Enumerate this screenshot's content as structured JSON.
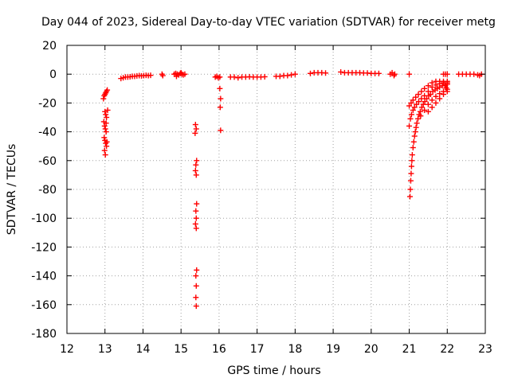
{
  "chart_data": {
    "type": "scatter",
    "title": "Day 044 of 2023, Sidereal Day-to-day VTEC variation (SDTVAR) for receiver metg",
    "xlabel": "GPS time / hours",
    "ylabel": "SDTVAR / TECUs",
    "xlim": [
      12,
      23
    ],
    "ylim": [
      -180,
      20
    ],
    "xticks": [
      12,
      13,
      14,
      15,
      16,
      17,
      18,
      19,
      20,
      21,
      22,
      23
    ],
    "yticks": [
      20,
      0,
      -20,
      -40,
      -60,
      -80,
      -100,
      -120,
      -140,
      -160,
      -180
    ],
    "grid": true,
    "marker": "+",
    "color": "#ff0000",
    "series": [
      {
        "name": "SDTVAR",
        "points": [
          [
            12.96,
            -17
          ],
          [
            12.98,
            -15
          ],
          [
            13.0,
            -14
          ],
          [
            13.02,
            -13
          ],
          [
            13.04,
            -12
          ],
          [
            13.06,
            -11
          ],
          [
            13.0,
            -26
          ],
          [
            13.02,
            -28
          ],
          [
            13.04,
            -30
          ],
          [
            12.97,
            -33
          ],
          [
            12.99,
            -36
          ],
          [
            13.01,
            -38
          ],
          [
            13.03,
            -40
          ],
          [
            12.98,
            -44
          ],
          [
            13.0,
            -46
          ],
          [
            13.02,
            -48
          ],
          [
            13.04,
            -50
          ],
          [
            12.99,
            -53
          ],
          [
            13.01,
            -56
          ],
          [
            13.05,
            -47
          ],
          [
            13.03,
            -34
          ],
          [
            13.07,
            -25
          ],
          [
            13.42,
            -3
          ],
          [
            13.48,
            -2.5
          ],
          [
            13.54,
            -2
          ],
          [
            13.6,
            -2
          ],
          [
            13.66,
            -1.8
          ],
          [
            13.72,
            -1.5
          ],
          [
            13.78,
            -1.5
          ],
          [
            13.84,
            -1.2
          ],
          [
            13.9,
            -1
          ],
          [
            13.96,
            -1.2
          ],
          [
            14.02,
            -1
          ],
          [
            14.08,
            -0.8
          ],
          [
            14.14,
            -1
          ],
          [
            14.2,
            -0.8
          ],
          [
            14.5,
            0
          ],
          [
            14.52,
            -1
          ],
          [
            14.82,
            0
          ],
          [
            14.86,
            0.5
          ],
          [
            14.9,
            0
          ],
          [
            14.94,
            -0.5
          ],
          [
            14.98,
            0.5
          ],
          [
            15.02,
            0
          ],
          [
            15.06,
            -0.5
          ],
          [
            15.1,
            0
          ],
          [
            14.88,
            -1.5
          ],
          [
            15.0,
            1
          ],
          [
            15.38,
            -35
          ],
          [
            15.4,
            -38
          ],
          [
            15.37,
            -41
          ],
          [
            15.41,
            -60
          ],
          [
            15.39,
            -63
          ],
          [
            15.38,
            -67
          ],
          [
            15.4,
            -70
          ],
          [
            15.41,
            -90
          ],
          [
            15.39,
            -95
          ],
          [
            15.4,
            -100
          ],
          [
            15.38,
            -104
          ],
          [
            15.4,
            -107
          ],
          [
            15.41,
            -136
          ],
          [
            15.39,
            -140
          ],
          [
            15.4,
            -147
          ],
          [
            15.39,
            -155
          ],
          [
            15.4,
            -161
          ],
          [
            15.9,
            -2
          ],
          [
            15.94,
            -1.5
          ],
          [
            15.98,
            -2.5
          ],
          [
            16.02,
            -2
          ],
          [
            16.02,
            -10
          ],
          [
            16.04,
            -17
          ],
          [
            16.03,
            -23
          ],
          [
            16.04,
            -39
          ],
          [
            16.3,
            -2
          ],
          [
            16.4,
            -2
          ],
          [
            16.5,
            -2.5
          ],
          [
            16.6,
            -2
          ],
          [
            16.7,
            -2
          ],
          [
            16.8,
            -1.8
          ],
          [
            16.9,
            -2
          ],
          [
            17.0,
            -2
          ],
          [
            17.1,
            -2
          ],
          [
            17.2,
            -1.8
          ],
          [
            17.5,
            -1.5
          ],
          [
            17.6,
            -1.5
          ],
          [
            17.7,
            -1
          ],
          [
            17.8,
            -1
          ],
          [
            17.9,
            -0.5
          ],
          [
            18.0,
            0
          ],
          [
            18.4,
            0.5
          ],
          [
            18.5,
            1
          ],
          [
            18.6,
            1
          ],
          [
            18.7,
            1
          ],
          [
            18.8,
            0.8
          ],
          [
            19.2,
            1.5
          ],
          [
            19.3,
            1
          ],
          [
            19.4,
            1
          ],
          [
            19.5,
            1
          ],
          [
            19.6,
            1
          ],
          [
            19.7,
            1
          ],
          [
            19.8,
            0.8
          ],
          [
            19.9,
            0.8
          ],
          [
            20.0,
            0.5
          ],
          [
            20.1,
            0.5
          ],
          [
            20.2,
            0.5
          ],
          [
            20.5,
            0
          ],
          [
            20.55,
            1
          ],
          [
            20.6,
            -1
          ],
          [
            20.62,
            0
          ],
          [
            21.0,
            0
          ],
          [
            21.02,
            -85
          ],
          [
            21.03,
            -80
          ],
          [
            21.04,
            -74
          ],
          [
            21.05,
            -69
          ],
          [
            21.06,
            -64
          ],
          [
            21.07,
            -60
          ],
          [
            21.08,
            -56
          ],
          [
            21.1,
            -51
          ],
          [
            21.12,
            -47
          ],
          [
            21.14,
            -43
          ],
          [
            21.16,
            -40
          ],
          [
            21.18,
            -37
          ],
          [
            21.2,
            -34
          ],
          [
            21.23,
            -31
          ],
          [
            21.26,
            -28
          ],
          [
            21.29,
            -26
          ],
          [
            21.33,
            -23
          ],
          [
            21.37,
            -21
          ],
          [
            21.41,
            -19
          ],
          [
            21.46,
            -17
          ],
          [
            21.51,
            -15
          ],
          [
            21.56,
            -14
          ],
          [
            21.62,
            -12
          ],
          [
            21.68,
            -11
          ],
          [
            21.74,
            -10
          ],
          [
            21.8,
            -9
          ],
          [
            21.87,
            -8
          ],
          [
            21.94,
            -7.5
          ],
          [
            22.0,
            -7
          ],
          [
            21.0,
            -36
          ],
          [
            21.03,
            -31
          ],
          [
            21.06,
            -28
          ],
          [
            21.1,
            -25
          ],
          [
            21.14,
            -23
          ],
          [
            21.19,
            -21
          ],
          [
            21.25,
            -19
          ],
          [
            21.32,
            -17
          ],
          [
            21.4,
            -15
          ],
          [
            21.5,
            -12
          ],
          [
            21.6,
            -9
          ],
          [
            21.7,
            -7.5
          ],
          [
            21.8,
            -6.5
          ],
          [
            21.9,
            -6
          ],
          [
            22.0,
            -6
          ],
          [
            21.0,
            -22
          ],
          [
            21.05,
            -20
          ],
          [
            21.1,
            -18
          ],
          [
            21.17,
            -16
          ],
          [
            21.24,
            -14
          ],
          [
            21.32,
            -12
          ],
          [
            21.4,
            -10
          ],
          [
            21.5,
            -8
          ],
          [
            21.6,
            -6
          ],
          [
            21.7,
            -5
          ],
          [
            21.8,
            -5
          ],
          [
            21.9,
            -5
          ],
          [
            22.0,
            -5
          ],
          [
            21.3,
            -29
          ],
          [
            21.4,
            -25
          ],
          [
            21.5,
            -21
          ],
          [
            21.6,
            -18
          ],
          [
            21.7,
            -15.5
          ],
          [
            21.8,
            -13.5
          ],
          [
            21.9,
            -12
          ],
          [
            22.0,
            -10.5
          ],
          [
            21.5,
            -26
          ],
          [
            21.6,
            -23
          ],
          [
            21.7,
            -20
          ],
          [
            21.8,
            -17
          ],
          [
            21.9,
            -14
          ],
          [
            22.0,
            -12
          ],
          [
            21.95,
            -8
          ],
          [
            21.97,
            -9.5
          ],
          [
            21.9,
            0
          ],
          [
            21.95,
            0
          ],
          [
            22.0,
            0
          ],
          [
            22.3,
            0
          ],
          [
            22.4,
            0
          ],
          [
            22.5,
            0
          ],
          [
            22.6,
            0
          ],
          [
            22.7,
            0
          ],
          [
            22.8,
            -0.5
          ],
          [
            22.85,
            -1
          ],
          [
            22.9,
            0
          ]
        ]
      }
    ]
  }
}
